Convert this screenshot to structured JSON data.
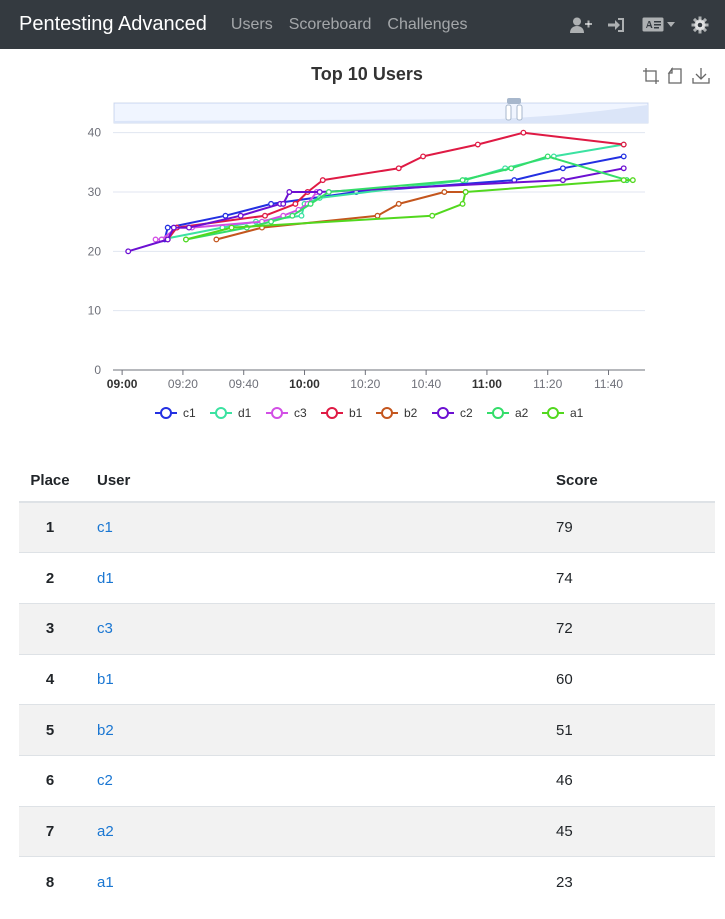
{
  "navbar": {
    "brand": "Pentesting Advanced",
    "links": [
      "Users",
      "Scoreboard",
      "Challenges"
    ],
    "icons": [
      "user-plus-icon",
      "sign-in-icon",
      "language-icon",
      "caret-down-icon",
      "settings-gear-icon"
    ]
  },
  "chart_data": {
    "type": "line",
    "title": "Top 10 Users",
    "xlabel": "",
    "ylabel": "",
    "ylim": [
      0,
      45
    ],
    "y_ticks": [
      0,
      10,
      20,
      30,
      40
    ],
    "x_ticks": [
      "09:00",
      "09:20",
      "09:40",
      "10:00",
      "10:20",
      "10:40",
      "11:00",
      "11:20",
      "11:40"
    ],
    "x_bold_ticks": [
      "09:00",
      "10:00",
      "11:00"
    ],
    "x_range": [
      "08:57",
      "11:52"
    ],
    "legend_position": "bottom",
    "grid": true,
    "toolbox": [
      "zoom-icon",
      "restore-icon",
      "download-icon"
    ],
    "series": [
      {
        "name": "c1",
        "color": "#2330e2",
        "x": [
          "09:14",
          "09:15",
          "09:34",
          "09:49",
          "10:17",
          "11:09",
          "11:25",
          "11:45"
        ],
        "y": [
          22,
          24,
          26,
          28,
          30,
          32,
          34,
          36
        ]
      },
      {
        "name": "d1",
        "color": "#3be2a1",
        "x": [
          "09:13",
          "09:33",
          "09:44",
          "09:59",
          "10:00",
          "10:05",
          "10:53",
          "11:06",
          "11:22",
          "11:45"
        ],
        "y": [
          22,
          24,
          25,
          26,
          28,
          29,
          32,
          34,
          36,
          38
        ]
      },
      {
        "name": "c3",
        "color": "#d24fe5",
        "x": [
          "09:11",
          "09:13",
          "09:18",
          "09:23",
          "09:46",
          "09:53",
          "09:58",
          "10:01",
          "10:04"
        ],
        "y": [
          22,
          22,
          24,
          24,
          25,
          26,
          27,
          28,
          30
        ]
      },
      {
        "name": "b1",
        "color": "#df1a44",
        "x": [
          "09:15",
          "09:18",
          "09:47",
          "09:57",
          "10:01",
          "10:06",
          "10:31",
          "10:39",
          "10:57",
          "11:12",
          "11:45"
        ],
        "y": [
          22,
          24,
          26,
          28,
          30,
          32,
          34,
          36,
          38,
          40,
          38
        ]
      },
      {
        "name": "b2",
        "color": "#c4561e",
        "x": [
          "09:31",
          "09:46",
          "10:24",
          "10:31",
          "10:46",
          "10:53"
        ],
        "y": [
          22,
          24,
          26,
          28,
          30,
          30
        ]
      },
      {
        "name": "c2",
        "color": "#6c10d2",
        "x": [
          "09:02",
          "09:15",
          "09:17",
          "09:22",
          "09:39",
          "09:52",
          "09:53",
          "09:55",
          "10:05",
          "11:25",
          "11:45"
        ],
        "y": [
          20,
          22,
          24,
          24,
          26,
          28,
          28,
          30,
          30,
          32,
          34
        ]
      },
      {
        "name": "a2",
        "color": "#34dd6a",
        "x": [
          "09:21",
          "09:41",
          "09:49",
          "09:56",
          "10:02",
          "10:08",
          "10:52",
          "11:08",
          "11:20",
          "11:46"
        ],
        "y": [
          22,
          24,
          25,
          26,
          28,
          30,
          32,
          34,
          36,
          32
        ]
      },
      {
        "name": "a1",
        "color": "#52d81e",
        "x": [
          "09:21",
          "09:36",
          "10:42",
          "10:52",
          "10:53",
          "11:45",
          "11:48"
        ],
        "y": [
          22,
          24,
          26,
          28,
          30,
          32,
          32
        ]
      }
    ]
  },
  "table": {
    "headers": {
      "place": "Place",
      "user": "User",
      "score": "Score"
    },
    "rows": [
      {
        "place": "1",
        "user": "c1",
        "score": "79"
      },
      {
        "place": "2",
        "user": "d1",
        "score": "74"
      },
      {
        "place": "3",
        "user": "c3",
        "score": "72"
      },
      {
        "place": "4",
        "user": "b1",
        "score": "60"
      },
      {
        "place": "5",
        "user": "b2",
        "score": "51"
      },
      {
        "place": "6",
        "user": "c2",
        "score": "46"
      },
      {
        "place": "7",
        "user": "a2",
        "score": "45"
      },
      {
        "place": "8",
        "user": "a1",
        "score": "23"
      }
    ]
  }
}
